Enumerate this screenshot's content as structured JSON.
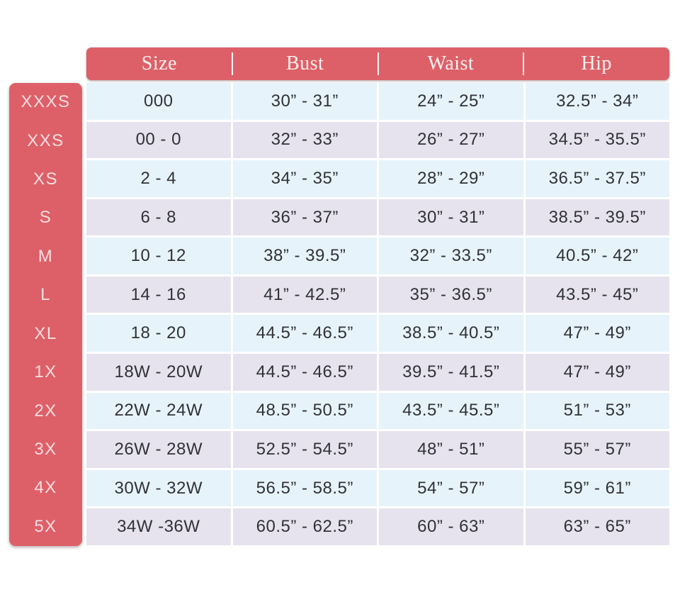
{
  "colors": {
    "accent_coral": "#dd6068",
    "row_blue": "#e7f3fa",
    "row_lavender": "#e6e3ee",
    "data_text": "#303238",
    "header_text": "#fdf3f1",
    "sidebar_text": "#f8dee1",
    "background": "#ffffff"
  },
  "chart_data": {
    "type": "table",
    "columns": [
      "Size",
      "Bust",
      "Waist",
      "Hip"
    ],
    "rows": [
      {
        "size_label": "XXXS",
        "cells": [
          "000",
          "30” - 31”",
          "24” - 25”",
          "32.5” - 34”"
        ]
      },
      {
        "size_label": "XXS",
        "cells": [
          "00 - 0",
          "32” - 33”",
          "26” - 27”",
          "34.5” - 35.5”"
        ]
      },
      {
        "size_label": "XS",
        "cells": [
          "2 - 4",
          "34” - 35”",
          "28” - 29”",
          "36.5” - 37.5”"
        ]
      },
      {
        "size_label": "S",
        "cells": [
          "6 - 8",
          "36” - 37”",
          "30” - 31”",
          "38.5” - 39.5”"
        ]
      },
      {
        "size_label": "M",
        "cells": [
          "10 - 12",
          "38” - 39.5”",
          "32” - 33.5”",
          "40.5” - 42”"
        ]
      },
      {
        "size_label": "L",
        "cells": [
          "14 - 16",
          "41” - 42.5”",
          "35” - 36.5”",
          "43.5” - 45”"
        ]
      },
      {
        "size_label": "XL",
        "cells": [
          "18 - 20",
          "44.5” - 46.5”",
          "38.5” - 40.5”",
          "47” - 49”"
        ]
      },
      {
        "size_label": "1X",
        "cells": [
          "18W - 20W",
          "44.5” - 46.5”",
          "39.5” - 41.5”",
          "47” - 49”"
        ]
      },
      {
        "size_label": "2X",
        "cells": [
          "22W - 24W",
          "48.5” - 50.5”",
          "43.5” - 45.5”",
          "51” - 53”"
        ]
      },
      {
        "size_label": "3X",
        "cells": [
          "26W - 28W",
          "52.5” - 54.5”",
          "48” - 51”",
          "55” - 57”"
        ]
      },
      {
        "size_label": "4X",
        "cells": [
          "30W - 32W",
          "56.5” - 58.5”",
          "54” - 57”",
          "59” - 61”"
        ]
      },
      {
        "size_label": "5X",
        "cells": [
          "34W -36W",
          "60.5” - 62.5”",
          "60” - 63”",
          "63” - 65”"
        ]
      }
    ]
  }
}
